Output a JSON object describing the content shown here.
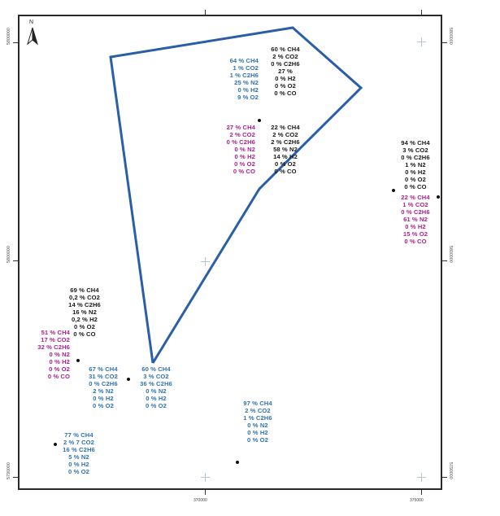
{
  "map": {
    "north_label": "N",
    "boundary_color": "#2a5fa8",
    "colors": {
      "black": "#1a1a1a",
      "blue": "#2f73b4",
      "magenta": "#b0208f"
    },
    "coords": {
      "left_top": "5800000",
      "left_mid": "5800000",
      "left_bottom": "5790000",
      "right_top": "5800000",
      "right_mid": "5800000",
      "right_bottom": "5790000",
      "bottom_left": "370000",
      "bottom_right": "375000"
    },
    "samples": [
      {
        "id": "s1",
        "color": "black",
        "lines": [
          "60 % CH4",
          "2 % CO2",
          "0 % C2H6",
          "27 %",
          "0 % H2",
          "0 % O2",
          "0 % CO"
        ]
      },
      {
        "id": "s2",
        "color": "blue",
        "lines": [
          "64 % CH4",
          "1 % CO2",
          "1 % C2H6",
          "25 % N2",
          "0 % H2",
          "9 % O2"
        ]
      },
      {
        "id": "s3",
        "color": "magenta",
        "lines": [
          "27 % CH4",
          "2 % CO2",
          "0 % C2H6",
          "0 % N2",
          "0 % H2",
          "0 % O2",
          "0 % CO"
        ]
      },
      {
        "id": "s4",
        "color": "black",
        "lines": [
          "22 % CH4",
          "2 % CO2",
          "2 % C2H6",
          "58 % N2",
          "14 % H2",
          "0 % O2",
          "0 % CO"
        ]
      },
      {
        "id": "s5",
        "color": "black",
        "lines": [
          "94 % CH4",
          "3 % CO2",
          "0 % C2H6",
          "1 % N2",
          "0 % H2",
          "0 % O2",
          "0 % CO"
        ]
      },
      {
        "id": "s6",
        "color": "magenta",
        "lines": [
          "22 % CH4",
          "1 % CO2",
          "0 % C2H6",
          "61 % N2",
          "0 % H2",
          "15 % O2",
          "0 % CO"
        ]
      },
      {
        "id": "s7",
        "color": "black",
        "lines": [
          "69 % CH4",
          "0,2 % CO2",
          "14 % C2H6",
          "16 % N2",
          "0,2 % H2",
          "0 % O2",
          "0 % CO"
        ]
      },
      {
        "id": "s8",
        "color": "magenta",
        "lines": [
          "51 % CH4",
          "17 % CO2",
          "32 % C2H6",
          "0 % N2",
          "0 % H2",
          "0 % O2",
          "0 % CO"
        ]
      },
      {
        "id": "s9",
        "color": "blue",
        "lines": [
          "67 % CH4",
          "31 % CO2",
          "0 % C2H6",
          "2 % N2",
          "0 % H2",
          "0 % O2"
        ]
      },
      {
        "id": "s10",
        "color": "blue",
        "lines": [
          "60 % CH4",
          "3 % CO2",
          "36 % C2H6",
          "0 % N2",
          "0 % H2",
          "0 % O2"
        ]
      },
      {
        "id": "s11",
        "color": "blue",
        "lines": [
          "97 % CH4",
          "2 % CO2",
          "1 % C2H6",
          "0 % N2",
          "0 % H2",
          "0 % O2"
        ]
      },
      {
        "id": "s12",
        "color": "blue",
        "lines": [
          "77 % CH4",
          "2 % 7 CO2",
          "16 % C2H6",
          "5 % N2",
          "0 % H2",
          "0 % O2"
        ]
      }
    ]
  }
}
